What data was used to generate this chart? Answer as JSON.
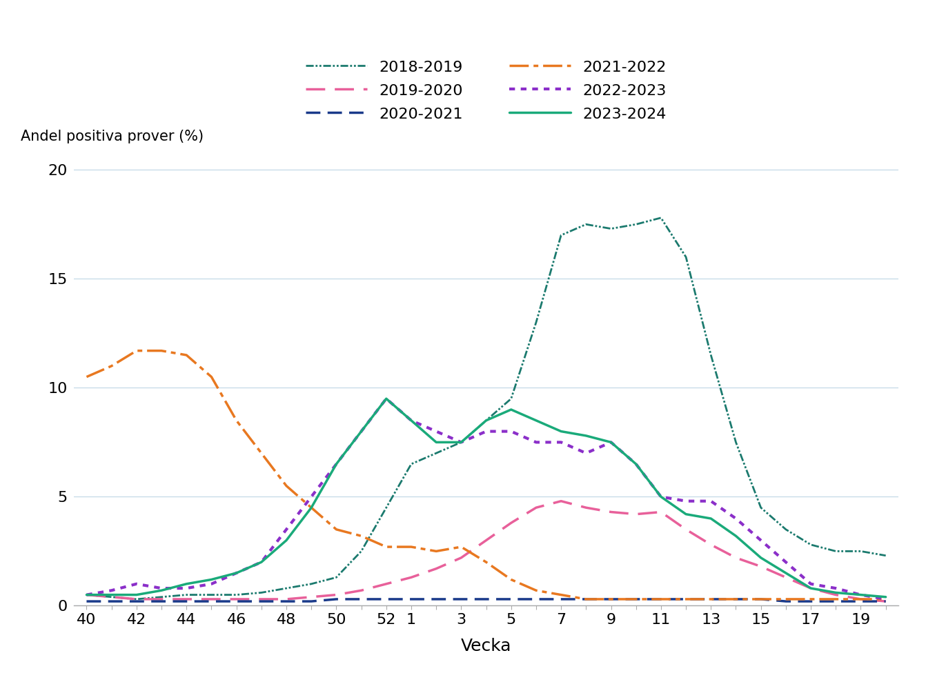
{
  "title": "",
  "ylabel": "Andel positiva prover (%)",
  "xlabel": "Vecka",
  "ylim": [
    0,
    21
  ],
  "yticks": [
    0,
    5,
    10,
    15,
    20
  ],
  "x_ticks_all": [
    40,
    41,
    42,
    43,
    44,
    45,
    46,
    47,
    48,
    49,
    50,
    51,
    52,
    1,
    2,
    3,
    4,
    5,
    6,
    7,
    8,
    9,
    10,
    11,
    12,
    13,
    14,
    15,
    16,
    17,
    18,
    19,
    20
  ],
  "x_label_ticks": [
    40,
    42,
    44,
    46,
    48,
    50,
    52,
    1,
    3,
    5,
    7,
    9,
    11,
    13,
    15,
    17,
    19
  ],
  "series": {
    "2018-2019": {
      "color": "#1b7a6e",
      "dashes": [
        4,
        1,
        1,
        1,
        1,
        1
      ],
      "linewidth": 2.0,
      "values": [
        0.5,
        0.4,
        0.3,
        0.4,
        0.5,
        0.5,
        0.5,
        0.6,
        0.8,
        1.0,
        1.3,
        2.5,
        4.5,
        6.5,
        7.0,
        7.5,
        8.5,
        9.5,
        13.0,
        17.0,
        17.5,
        17.3,
        17.5,
        17.8,
        16.0,
        11.5,
        7.5,
        4.5,
        3.5,
        2.8,
        2.5,
        2.5,
        2.3
      ]
    },
    "2019-2020": {
      "color": "#e8609a",
      "dashes": [
        8,
        4
      ],
      "linewidth": 2.5,
      "values": [
        0.5,
        0.4,
        0.3,
        0.3,
        0.3,
        0.3,
        0.3,
        0.3,
        0.3,
        0.4,
        0.5,
        0.7,
        1.0,
        1.3,
        1.7,
        2.2,
        3.0,
        3.8,
        4.5,
        4.8,
        4.5,
        4.3,
        4.2,
        4.3,
        3.5,
        2.8,
        2.2,
        1.8,
        1.3,
        0.8,
        0.5,
        0.3,
        0.2
      ]
    },
    "2020-2021": {
      "color": "#1a3a8a",
      "dashes": [
        6,
        3
      ],
      "linewidth": 2.5,
      "values": [
        0.2,
        0.2,
        0.2,
        0.2,
        0.2,
        0.2,
        0.2,
        0.2,
        0.2,
        0.2,
        0.3,
        0.3,
        0.3,
        0.3,
        0.3,
        0.3,
        0.3,
        0.3,
        0.3,
        0.3,
        0.3,
        0.3,
        0.3,
        0.3,
        0.3,
        0.3,
        0.3,
        0.3,
        0.2,
        0.2,
        0.2,
        0.2,
        0.2
      ]
    },
    "2021-2022": {
      "color": "#e87820",
      "dashes": [
        8,
        2,
        2,
        2
      ],
      "linewidth": 2.5,
      "values": [
        10.5,
        11.0,
        11.7,
        11.7,
        11.5,
        10.5,
        8.5,
        7.0,
        5.5,
        4.5,
        3.5,
        3.2,
        2.7,
        2.7,
        2.5,
        2.7,
        2.0,
        1.2,
        0.7,
        0.5,
        0.3,
        0.3,
        0.3,
        0.3,
        0.3,
        0.3,
        0.3,
        0.3,
        0.3,
        0.3,
        0.3,
        0.3,
        0.3
      ]
    },
    "2022-2023": {
      "color": "#8b2fc9",
      "dashes": [
        2,
        2
      ],
      "linewidth": 3.0,
      "values": [
        0.5,
        0.7,
        1.0,
        0.8,
        0.8,
        1.0,
        1.5,
        2.0,
        3.5,
        5.0,
        6.5,
        8.0,
        9.5,
        8.5,
        8.0,
        7.5,
        8.0,
        8.0,
        7.5,
        7.5,
        7.0,
        7.5,
        6.5,
        5.0,
        4.8,
        4.8,
        4.0,
        3.0,
        2.0,
        1.0,
        0.8,
        0.5,
        0.3
      ]
    },
    "2023-2024": {
      "color": "#1aaa7a",
      "dashes": null,
      "linewidth": 2.5,
      "values": [
        0.5,
        0.5,
        0.5,
        0.7,
        1.0,
        1.2,
        1.5,
        2.0,
        3.0,
        4.5,
        6.5,
        8.0,
        9.5,
        8.5,
        7.5,
        7.5,
        8.5,
        9.0,
        8.5,
        8.0,
        7.8,
        7.5,
        6.5,
        5.0,
        4.2,
        4.0,
        3.2,
        2.2,
        1.5,
        0.8,
        0.6,
        0.5,
        0.4
      ]
    }
  },
  "legend_order": [
    "2018-2019",
    "2019-2020",
    "2020-2021",
    "2021-2022",
    "2022-2023",
    "2023-2024"
  ],
  "background_color": "#ffffff",
  "grid_color": "#c8dce8"
}
